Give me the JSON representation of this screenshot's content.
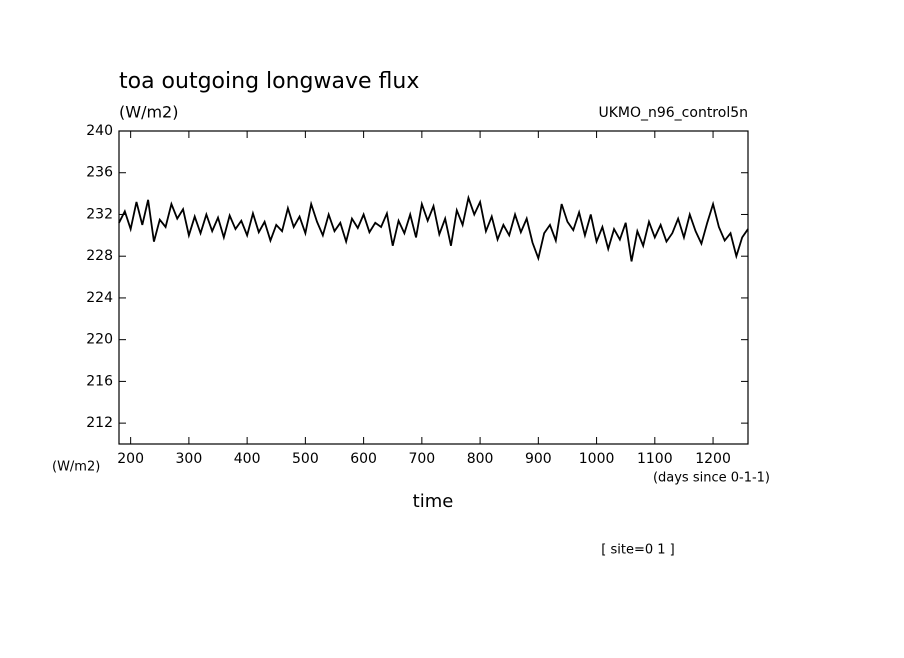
{
  "chart_data": {
    "type": "line",
    "title": "toa outgoing longwave flux",
    "subtitle": "(W/m2)",
    "annotation_right": "UKMO_n96_control5n",
    "y_axis_label": "(W/m2)",
    "x_units": "(days since 0-1-1)",
    "x_axis_label": "time",
    "footnote": "[ site=0 1 ]",
    "color": "#000000",
    "x": [
      180,
      190,
      200,
      210,
      220,
      230,
      240,
      250,
      260,
      270,
      280,
      290,
      300,
      310,
      320,
      330,
      340,
      350,
      360,
      370,
      380,
      390,
      400,
      410,
      420,
      430,
      440,
      450,
      460,
      470,
      480,
      490,
      500,
      510,
      520,
      530,
      540,
      550,
      560,
      570,
      580,
      590,
      600,
      610,
      620,
      630,
      640,
      650,
      660,
      670,
      680,
      690,
      700,
      710,
      720,
      730,
      740,
      750,
      760,
      770,
      780,
      790,
      800,
      810,
      820,
      830,
      840,
      850,
      860,
      870,
      880,
      890,
      900,
      910,
      920,
      930,
      940,
      950,
      960,
      970,
      980,
      990,
      1000,
      1010,
      1020,
      1030,
      1040,
      1050,
      1060,
      1070,
      1080,
      1090,
      1100,
      1110,
      1120,
      1130,
      1140,
      1150,
      1160,
      1170,
      1180,
      1190,
      1200,
      1210,
      1220,
      1230,
      1240,
      1250,
      1260
    ],
    "values": [
      231.2,
      232.3,
      230.6,
      233.2,
      231.0,
      233.4,
      229.4,
      231.5,
      230.8,
      233.0,
      231.6,
      232.5,
      230.0,
      231.8,
      230.2,
      232.0,
      230.4,
      231.7,
      229.8,
      231.9,
      230.6,
      231.4,
      230.0,
      232.1,
      230.3,
      231.3,
      229.5,
      231.0,
      230.4,
      232.6,
      230.8,
      231.8,
      230.2,
      233.0,
      231.3,
      230.0,
      232.0,
      230.4,
      231.2,
      229.4,
      231.6,
      230.7,
      232.0,
      230.3,
      231.2,
      230.8,
      232.1,
      229.0,
      231.4,
      230.2,
      232.0,
      229.8,
      233.0,
      231.4,
      232.8,
      230.1,
      231.6,
      229.0,
      232.4,
      231.0,
      233.6,
      232.0,
      233.2,
      230.4,
      231.8,
      229.6,
      231.0,
      230.0,
      232.0,
      230.3,
      231.6,
      229.3,
      227.8,
      230.2,
      231.0,
      229.5,
      233.0,
      231.3,
      230.5,
      232.2,
      230.0,
      232.0,
      229.4,
      230.8,
      228.7,
      230.6,
      229.6,
      231.2,
      227.5,
      230.4,
      229.0,
      231.3,
      229.8,
      231.0,
      229.4,
      230.2,
      231.6,
      229.8,
      232.0,
      230.4,
      229.2,
      231.2,
      233.0,
      230.8,
      229.5,
      230.2,
      228.0,
      229.8,
      230.6
    ],
    "xlim": [
      180,
      1260
    ],
    "ylim": [
      210,
      240
    ],
    "xticks": [
      200,
      300,
      400,
      500,
      600,
      700,
      800,
      900,
      1000,
      1100,
      1200
    ],
    "yticks": [
      212,
      216,
      220,
      224,
      228,
      232,
      236,
      240
    ]
  }
}
